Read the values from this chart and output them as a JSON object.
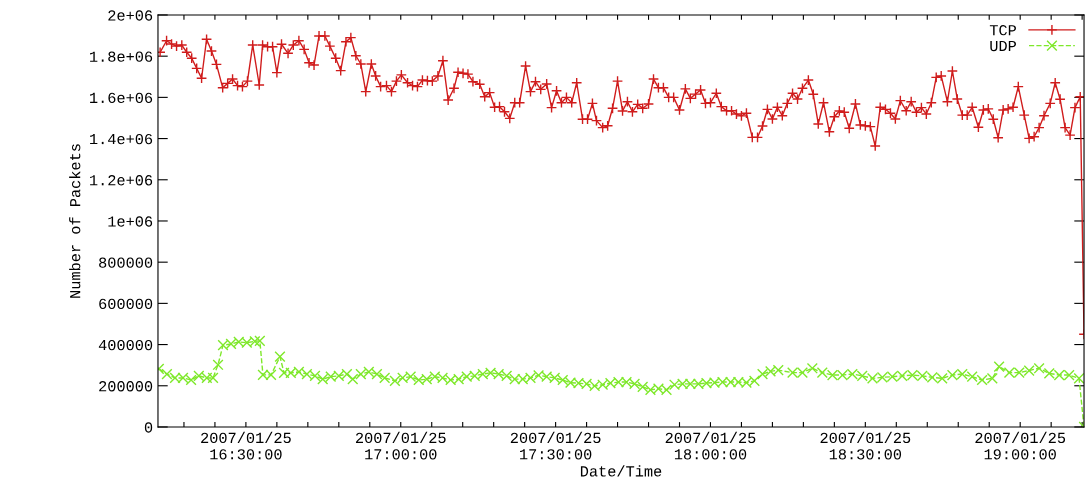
{
  "chart_data": {
    "type": "line",
    "xlabel": "Date/Time",
    "ylabel": "Number of Packets",
    "xlim": [
      "2007-01-25T16:12:58",
      "2007-01-25T19:12:22"
    ],
    "ylim": [
      0,
      2000000
    ],
    "yticks": [
      0,
      200000,
      400000,
      600000,
      800000,
      {
        "value": 1000000,
        "label": "1e+06"
      },
      {
        "value": 1200000,
        "label": "1.2e+06"
      },
      {
        "value": 1400000,
        "label": "1.4e+06"
      },
      {
        "value": 1600000,
        "label": "1.6e+06"
      },
      {
        "value": 1800000,
        "label": "1.8e+06"
      },
      {
        "value": 2000000,
        "label": "2e+06"
      }
    ],
    "xticks": [
      {
        "value": "2007-01-25T16:18",
        "label": null
      },
      {
        "value": "2007-01-25T16:24",
        "label": null
      },
      {
        "value": "2007-01-25T16:30",
        "label": "2007/01/25\n16:30:00"
      },
      {
        "value": "2007-01-25T16:36",
        "label": null
      },
      {
        "value": "2007-01-25T16:42",
        "label": null
      },
      {
        "value": "2007-01-25T16:48",
        "label": null
      },
      {
        "value": "2007-01-25T16:54",
        "label": null
      },
      {
        "value": "2007-01-25T17:00",
        "label": "2007/01/25\n17:00:00"
      },
      {
        "value": "2007-01-25T17:06",
        "label": null
      },
      {
        "value": "2007-01-25T17:12",
        "label": null
      },
      {
        "value": "2007-01-25T17:18",
        "label": null
      },
      {
        "value": "2007-01-25T17:24",
        "label": null
      },
      {
        "value": "2007-01-25T17:30",
        "label": "2007/01/25\n17:30:00"
      },
      {
        "value": "2007-01-25T17:36",
        "label": null
      },
      {
        "value": "2007-01-25T17:42",
        "label": null
      },
      {
        "value": "2007-01-25T17:48",
        "label": null
      },
      {
        "value": "2007-01-25T17:54",
        "label": null
      },
      {
        "value": "2007-01-25T18:00",
        "label": "2007/01/25\n18:00:00"
      },
      {
        "value": "2007-01-25T18:06",
        "label": null
      },
      {
        "value": "2007-01-25T18:12",
        "label": null
      },
      {
        "value": "2007-01-25T18:18",
        "label": null
      },
      {
        "value": "2007-01-25T18:24",
        "label": null
      },
      {
        "value": "2007-01-25T18:30",
        "label": "2007/01/25\n18:30:00"
      },
      {
        "value": "2007-01-25T18:36",
        "label": null
      },
      {
        "value": "2007-01-25T18:42",
        "label": null
      },
      {
        "value": "2007-01-25T18:48",
        "label": null
      },
      {
        "value": "2007-01-25T18:54",
        "label": null
      },
      {
        "value": "2007-01-25T19:00",
        "label": "2007/01/25\n19:00:00"
      },
      {
        "value": "2007-01-25T19:06",
        "label": null
      },
      {
        "value": "2007-01-25T19:12",
        "label": null
      }
    ],
    "grid": false,
    "legend": "top right",
    "series": [
      {
        "name": "TCP",
        "color": "#d01c1c",
        "marker": "plus",
        "line_style": "solid",
        "x": [
          "2007-01-25T16:13:23",
          "2007-01-25T16:14:38",
          "2007-01-25T16:15:36",
          "2007-01-25T16:16:34",
          "2007-01-25T16:17:35",
          "2007-01-25T16:18:32",
          "2007-01-25T16:19:30",
          "2007-01-25T16:20:28",
          "2007-01-25T16:21:25",
          "2007-01-25T16:22:23",
          "2007-01-25T16:23:20",
          "2007-01-25T16:24:18",
          "2007-01-25T16:25:30",
          "2007-01-25T16:26:28",
          "2007-01-25T16:27:25",
          "2007-01-25T16:28:23",
          "2007-01-25T16:29:20",
          "2007-01-25T16:30:18",
          "2007-01-25T16:31:19",
          "2007-01-25T16:32:35",
          "2007-01-25T16:33:14",
          "2007-01-25T16:34:12",
          "2007-01-25T16:35:10",
          "2007-01-25T16:36:00",
          "2007-01-25T16:36:54",
          "2007-01-25T16:38:10",
          "2007-01-25T16:39:11",
          "2007-01-25T16:40:16",
          "2007-01-25T16:41:17",
          "2007-01-25T16:42:14",
          "2007-01-25T16:43:12",
          "2007-01-25T16:44:10",
          "2007-01-25T16:45:18",
          "2007-01-25T16:46:16",
          "2007-01-25T16:47:24",
          "2007-01-25T16:48:22",
          "2007-01-25T16:49:23",
          "2007-01-25T16:50:20",
          "2007-01-25T16:51:18",
          "2007-01-25T16:52:16",
          "2007-01-25T16:53:13",
          "2007-01-25T16:54:18",
          "2007-01-25T16:55:08",
          "2007-01-25T16:56:06",
          "2007-01-25T16:57:14",
          "2007-01-25T16:58:12",
          "2007-01-25T16:59:10",
          "2007-01-25T17:00:07",
          "2007-01-25T17:01:19",
          "2007-01-25T17:02:17",
          "2007-01-25T17:03:14",
          "2007-01-25T17:04:12",
          "2007-01-25T17:05:10",
          "2007-01-25T17:06:07",
          "2007-01-25T17:07:12",
          "2007-01-25T17:08:10",
          "2007-01-25T17:09:11",
          "2007-01-25T17:10:19",
          "2007-01-25T17:11:06",
          "2007-01-25T17:12:04",
          "2007-01-25T17:13:01",
          "2007-01-25T17:13:59",
          "2007-01-25T17:15:18",
          "2007-01-25T17:16:16",
          "2007-01-25T17:17:13",
          "2007-01-25T17:18:11",
          "2007-01-25T17:19:08",
          "2007-01-25T17:20:06",
          "2007-01-25T17:21:07",
          "2007-01-25T17:22:05",
          "2007-01-25T17:23:02",
          "2007-01-25T17:24:11",
          "2007-01-25T17:25:08",
          "2007-01-25T17:26:06",
          "2007-01-25T17:27:07",
          "2007-01-25T17:28:16",
          "2007-01-25T17:29:13",
          "2007-01-25T17:30:11",
          "2007-01-25T17:31:08",
          "2007-01-25T17:32:06",
          "2007-01-25T17:33:07",
          "2007-01-25T17:34:05",
          "2007-01-25T17:35:13",
          "2007-01-25T17:36:11",
          "2007-01-25T17:37:08",
          "2007-01-25T17:37:55",
          "2007-01-25T17:39:07",
          "2007-01-25T17:40:05",
          "2007-01-25T17:41:02",
          "2007-01-25T17:42:00",
          "2007-01-25T17:42:58",
          "2007-01-25T17:43:55",
          "2007-01-25T17:44:53",
          "2007-01-25T17:45:54",
          "2007-01-25T17:46:52",
          "2007-01-25T17:48:00",
          "2007-01-25T17:48:58",
          "2007-01-25T17:49:55",
          "2007-01-25T17:50:53",
          "2007-01-25T17:51:54",
          "2007-01-25T17:52:52",
          "2007-01-25T17:54:00",
          "2007-01-25T17:55:08",
          "2007-01-25T17:56:06",
          "2007-01-25T17:57:07",
          "2007-01-25T17:58:05",
          "2007-01-25T17:59:02",
          "2007-01-25T18:00:00",
          "2007-01-25T18:01:08",
          "2007-01-25T18:02:06",
          "2007-01-25T18:03:07",
          "2007-01-25T18:04:05",
          "2007-01-25T18:05:02",
          "2007-01-25T18:06:00",
          "2007-01-25T18:06:58",
          "2007-01-25T18:08:06",
          "2007-01-25T18:09:07",
          "2007-01-25T18:10:05",
          "2007-01-25T18:11:02",
          "2007-01-25T18:12:00",
          "2007-01-25T18:12:58",
          "2007-01-25T18:13:55",
          "2007-01-25T18:14:53",
          "2007-01-25T18:15:54",
          "2007-01-25T18:16:52",
          "2007-01-25T18:17:49",
          "2007-01-25T18:18:58",
          "2007-01-25T18:19:55",
          "2007-01-25T18:20:53",
          "2007-01-25T18:21:54",
          "2007-01-25T18:23:02",
          "2007-01-25T18:24:00",
          "2007-01-25T18:24:58",
          "2007-01-25T18:25:55",
          "2007-01-25T18:26:53",
          "2007-01-25T18:28:05",
          "2007-01-25T18:29:02",
          "2007-01-25T18:30:00",
          "2007-01-25T18:30:58",
          "2007-01-25T18:31:55",
          "2007-01-25T18:32:53",
          "2007-01-25T18:33:54",
          "2007-01-25T18:34:52",
          "2007-01-25T18:35:49",
          "2007-01-25T18:36:47",
          "2007-01-25T18:37:55",
          "2007-01-25T18:38:53",
          "2007-01-25T18:39:54",
          "2007-01-25T18:40:52",
          "2007-01-25T18:41:49",
          "2007-01-25T18:42:47",
          "2007-01-25T18:43:44",
          "2007-01-25T18:44:42",
          "2007-01-25T18:45:54",
          "2007-01-25T18:46:52",
          "2007-01-25T18:47:49",
          "2007-01-25T18:48:47",
          "2007-01-25T18:49:44",
          "2007-01-25T18:50:42",
          "2007-01-25T18:51:54",
          "2007-01-25T18:52:52",
          "2007-01-25T18:53:49",
          "2007-01-25T18:54:47",
          "2007-01-25T18:55:44",
          "2007-01-25T18:56:42",
          "2007-01-25T18:57:40",
          "2007-01-25T18:58:37",
          "2007-01-25T18:59:38",
          "2007-01-25T19:00:47",
          "2007-01-25T19:01:44",
          "2007-01-25T19:02:42",
          "2007-01-25T19:03:40",
          "2007-01-25T19:04:37",
          "2007-01-25T19:05:49",
          "2007-01-25T19:06:47",
          "2007-01-25T19:07:44",
          "2007-01-25T19:08:42",
          "2007-01-25T19:09:40",
          "2007-01-25T19:10:37",
          "2007-01-25T19:11:38",
          "2007-01-25T19:12:22"
        ],
        "values": [
          1819000,
          1875000,
          1859000,
          1849000,
          1854000,
          1819000,
          1790000,
          1741000,
          1693000,
          1882000,
          1825000,
          1760000,
          1647000,
          1668000,
          1689000,
          1657000,
          1652000,
          1679000,
          1854000,
          1660000,
          1854000,
          1846000,
          1846000,
          1720000,
          1858000,
          1814000,
          1854000,
          1875000,
          1833000,
          1768000,
          1757000,
          1898000,
          1898000,
          1849000,
          1790000,
          1730000,
          1870000,
          1890000,
          1802000,
          1762000,
          1628000,
          1762000,
          1704000,
          1652000,
          1657000,
          1628000,
          1679000,
          1709000,
          1671000,
          1657000,
          1652000,
          1684000,
          1681000,
          1679000,
          1704000,
          1778000,
          1587000,
          1644000,
          1722000,
          1717000,
          1713000,
          1676000,
          1664000,
          1603000,
          1623000,
          1552000,
          1555000,
          1530000,
          1498000,
          1574000,
          1574000,
          1752000,
          1628000,
          1676000,
          1639000,
          1665000,
          1550000,
          1632000,
          1574000,
          1600000,
          1574000,
          1671000,
          1494000,
          1494000,
          1571000,
          1487000,
          1453000,
          1462000,
          1547000,
          1679000,
          1534000,
          1579000,
          1530000,
          1566000,
          1547000,
          1568000,
          1689000,
          1647000,
          1647000,
          1600000,
          1600000,
          1539000,
          1641000,
          1595000,
          1616000,
          1636000,
          1571000,
          1574000,
          1620000,
          1555000,
          1535000,
          1535000,
          1519000,
          1510000,
          1523000,
          1406000,
          1406000,
          1461000,
          1542000,
          1495000,
          1552000,
          1511000,
          1571000,
          1620000,
          1592000,
          1644000,
          1684000,
          1615000,
          1471000,
          1574000,
          1433000,
          1506000,
          1534000,
          1528000,
          1450000,
          1568000,
          1466000,
          1462000,
          1458000,
          1364000,
          1552000,
          1542000,
          1523000,
          1495000,
          1584000,
          1535000,
          1579000,
          1528000,
          1550000,
          1519000,
          1574000,
          1697000,
          1704000,
          1579000,
          1728000,
          1592000,
          1514000,
          1514000,
          1552000,
          1455000,
          1539000,
          1544000,
          1494000,
          1404000,
          1539000,
          1544000,
          1552000,
          1652000,
          1514000,
          1401000,
          1409000,
          1453000,
          1511000,
          1571000,
          1671000,
          1591000,
          1453000,
          1417000,
          1550000,
          1603000,
          450000
        ]
      },
      {
        "name": "UDP",
        "color": "#7ee82a",
        "marker": "cross",
        "line_style": "dashed",
        "x": [
          "2007-01-25T16:13:08",
          "2007-01-25T16:14:42",
          "2007-01-25T16:16:16",
          "2007-01-25T16:17:49",
          "2007-01-25T16:19:23",
          "2007-01-25T16:20:53",
          "2007-01-25T16:22:26",
          "2007-01-25T16:23:38",
          "2007-01-25T16:24:36",
          "2007-01-25T16:25:34",
          "2007-01-25T16:27:07",
          "2007-01-25T16:28:37",
          "2007-01-25T16:30:11",
          "2007-01-25T16:31:44",
          "2007-01-25T16:32:42",
          "2007-01-25T16:33:18",
          "2007-01-25T16:34:52",
          "2007-01-25T16:36:36",
          "2007-01-25T16:37:23",
          "2007-01-25T16:38:42",
          "2007-01-25T16:40:16",
          "2007-01-25T16:41:49",
          "2007-01-25T16:43:23",
          "2007-01-25T16:44:53",
          "2007-01-25T16:46:26",
          "2007-01-25T16:48:00",
          "2007-01-25T16:49:34",
          "2007-01-25T16:50:42",
          "2007-01-25T16:52:16",
          "2007-01-25T16:53:49",
          "2007-01-25T16:55:23",
          "2007-01-25T16:56:53",
          "2007-01-25T16:58:52",
          "2007-01-25T17:00:22",
          "2007-01-25T17:01:55",
          "2007-01-25T17:03:29",
          "2007-01-25T17:05:02",
          "2007-01-25T17:06:36",
          "2007-01-25T17:08:06",
          "2007-01-25T17:09:40",
          "2007-01-25T17:11:13",
          "2007-01-25T17:12:47",
          "2007-01-25T17:14:20",
          "2007-01-25T17:15:54",
          "2007-01-25T17:17:24",
          "2007-01-25T17:18:58",
          "2007-01-25T17:20:31",
          "2007-01-25T17:22:05",
          "2007-01-25T17:23:38",
          "2007-01-25T17:25:08",
          "2007-01-25T17:26:42",
          "2007-01-25T17:28:16",
          "2007-01-25T17:29:49",
          "2007-01-25T17:31:23",
          "2007-01-25T17:32:53",
          "2007-01-25T17:34:26",
          "2007-01-25T17:36:00",
          "2007-01-25T17:37:34",
          "2007-01-25T17:39:07",
          "2007-01-25T17:40:37",
          "2007-01-25T17:42:11",
          "2007-01-25T17:43:44",
          "2007-01-25T17:45:18",
          "2007-01-25T17:46:52",
          "2007-01-25T17:48:22",
          "2007-01-25T17:49:55",
          "2007-01-25T17:51:29",
          "2007-01-25T17:53:02",
          "2007-01-25T17:54:36",
          "2007-01-25T17:56:06",
          "2007-01-25T17:57:40",
          "2007-01-25T17:59:13",
          "2007-01-25T18:00:47",
          "2007-01-25T18:02:20",
          "2007-01-25T18:03:54",
          "2007-01-25T18:05:24",
          "2007-01-25T18:06:58",
          "2007-01-25T18:08:31",
          "2007-01-25T18:10:05",
          "2007-01-25T18:11:38",
          "2007-01-25T18:13:08",
          "2007-01-25T18:15:54",
          "2007-01-25T18:17:49",
          "2007-01-25T18:19:44",
          "2007-01-25T18:21:40",
          "2007-01-25T18:23:38",
          "2007-01-25T18:25:34",
          "2007-01-25T18:27:29",
          "2007-01-25T18:29:24",
          "2007-01-25T18:31:23",
          "2007-01-25T18:33:18",
          "2007-01-25T18:35:13",
          "2007-01-25T18:37:08",
          "2007-01-25T18:39:07",
          "2007-01-25T18:41:02",
          "2007-01-25T18:42:58",
          "2007-01-25T18:44:53",
          "2007-01-25T18:46:52",
          "2007-01-25T18:48:47",
          "2007-01-25T18:50:42",
          "2007-01-25T18:52:37",
          "2007-01-25T18:54:36",
          "2007-01-25T18:55:55",
          "2007-01-25T18:57:54",
          "2007-01-25T18:59:49",
          "2007-01-25T19:01:44",
          "2007-01-25T19:03:40",
          "2007-01-25T19:05:38",
          "2007-01-25T19:07:34",
          "2007-01-25T19:09:29",
          "2007-01-25T19:11:24",
          "2007-01-25T19:12:22"
        ],
        "values": [
          282000,
          257000,
          238000,
          238000,
          228000,
          248000,
          238000,
          238000,
          302000,
          397000,
          403000,
          413000,
          409000,
          416000,
          418000,
          253000,
          253000,
          341000,
          263000,
          263000,
          267000,
          257000,
          248000,
          232000,
          244000,
          248000,
          257000,
          232000,
          257000,
          267000,
          257000,
          238000,
          224000,
          238000,
          244000,
          228000,
          232000,
          244000,
          238000,
          228000,
          232000,
          244000,
          248000,
          257000,
          263000,
          257000,
          248000,
          232000,
          232000,
          238000,
          251000,
          244000,
          238000,
          228000,
          215000,
          213000,
          209000,
          199000,
          205000,
          213000,
          218000,
          218000,
          209000,
          195000,
          180000,
          186000,
          180000,
          205000,
          209000,
          209000,
          209000,
          213000,
          215000,
          218000,
          218000,
          218000,
          215000,
          224000,
          257000,
          270000,
          276000,
          264000,
          264000,
          285000,
          264000,
          252000,
          252000,
          257000,
          248000,
          236000,
          241000,
          244000,
          248000,
          252000,
          248000,
          241000,
          236000,
          252000,
          257000,
          244000,
          228000,
          236000,
          293000,
          264000,
          264000,
          274000,
          285000,
          260000,
          252000,
          252000,
          236000,
          0
        ]
      }
    ]
  }
}
